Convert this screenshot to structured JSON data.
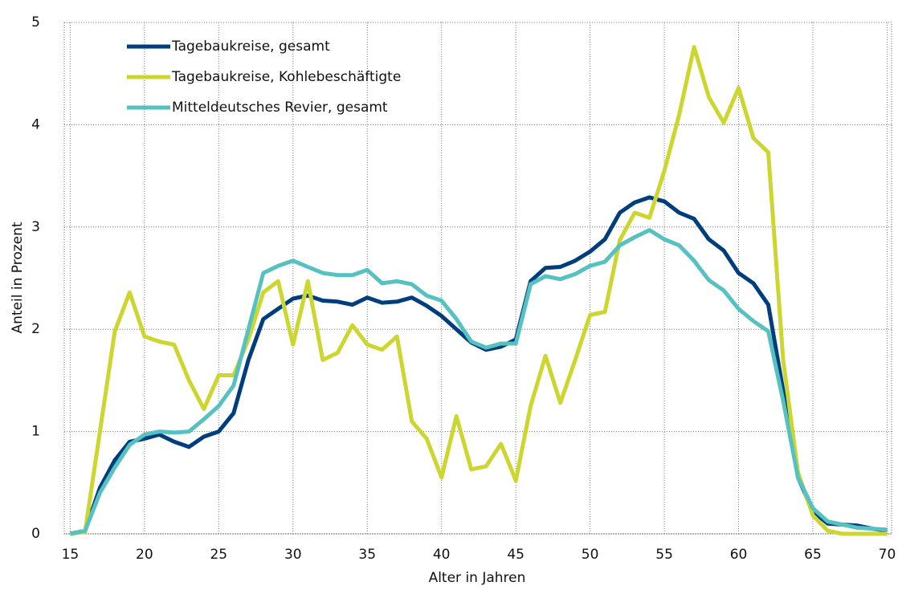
{
  "chart_data": {
    "type": "line",
    "x": [
      15,
      16,
      17,
      18,
      19,
      20,
      21,
      22,
      23,
      24,
      25,
      26,
      27,
      28,
      29,
      30,
      31,
      32,
      33,
      34,
      35,
      36,
      37,
      38,
      39,
      40,
      41,
      42,
      43,
      44,
      45,
      46,
      47,
      48,
      49,
      50,
      51,
      52,
      53,
      54,
      55,
      56,
      57,
      58,
      59,
      60,
      61,
      62,
      63,
      64,
      65,
      66,
      67,
      68,
      69,
      70
    ],
    "series": [
      {
        "name": "Tagebaukreise, gesamt",
        "color": "#003d7c",
        "values": [
          0,
          0.03,
          0.45,
          0.72,
          0.9,
          0.93,
          0.97,
          0.9,
          0.85,
          0.95,
          1.0,
          1.18,
          1.7,
          2.1,
          2.2,
          2.3,
          2.33,
          2.28,
          2.27,
          2.24,
          2.31,
          2.26,
          2.27,
          2.31,
          2.23,
          2.13,
          2.0,
          1.87,
          1.8,
          1.83,
          1.9,
          2.47,
          2.6,
          2.61,
          2.67,
          2.76,
          2.88,
          3.14,
          3.24,
          3.29,
          3.25,
          3.14,
          3.08,
          2.88,
          2.77,
          2.55,
          2.45,
          2.24,
          1.4,
          0.55,
          0.22,
          0.1,
          0.09,
          0.08,
          0.05,
          0.03
        ]
      },
      {
        "name": "Tagebaukreise, Kohlebeschäftigte",
        "color": "#cdd62f",
        "values": [
          0,
          0.02,
          1.0,
          1.98,
          2.36,
          1.93,
          1.88,
          1.85,
          1.5,
          1.22,
          1.55,
          1.55,
          1.9,
          2.36,
          2.47,
          1.85,
          2.47,
          1.7,
          1.77,
          2.04,
          1.85,
          1.8,
          1.93,
          1.1,
          0.93,
          0.55,
          1.15,
          0.63,
          0.66,
          0.88,
          0.52,
          1.25,
          1.74,
          1.28,
          1.7,
          2.14,
          2.17,
          2.87,
          3.14,
          3.09,
          3.55,
          4.1,
          4.76,
          4.27,
          4.02,
          4.36,
          3.87,
          3.73,
          1.7,
          0.6,
          0.18,
          0.03,
          0,
          0,
          0,
          0
        ]
      },
      {
        "name": "Mitteldeutsches Revier, gesamt",
        "color": "#56c1c1",
        "values": [
          0,
          0.03,
          0.4,
          0.65,
          0.87,
          0.97,
          1.0,
          0.99,
          1.0,
          1.12,
          1.25,
          1.45,
          2.0,
          2.55,
          2.62,
          2.67,
          2.61,
          2.55,
          2.53,
          2.53,
          2.58,
          2.45,
          2.47,
          2.44,
          2.33,
          2.28,
          2.1,
          1.88,
          1.82,
          1.86,
          1.86,
          2.44,
          2.52,
          2.49,
          2.54,
          2.62,
          2.66,
          2.82,
          2.9,
          2.97,
          2.88,
          2.82,
          2.67,
          2.48,
          2.38,
          2.2,
          2.08,
          1.98,
          1.3,
          0.55,
          0.25,
          0.12,
          0.09,
          0.06,
          0.05,
          0.04
        ]
      }
    ],
    "x_label": "Alter in Jahren",
    "y_label": "Anteil in Prozent",
    "xlim": [
      14.6,
      70.3
    ],
    "ylim": [
      0,
      5
    ],
    "xticks": [
      15,
      20,
      25,
      30,
      35,
      40,
      45,
      50,
      55,
      60,
      65,
      70
    ],
    "yticks": [
      0,
      1,
      2,
      3,
      4,
      5
    ],
    "grid": true,
    "legend": "upper left"
  }
}
